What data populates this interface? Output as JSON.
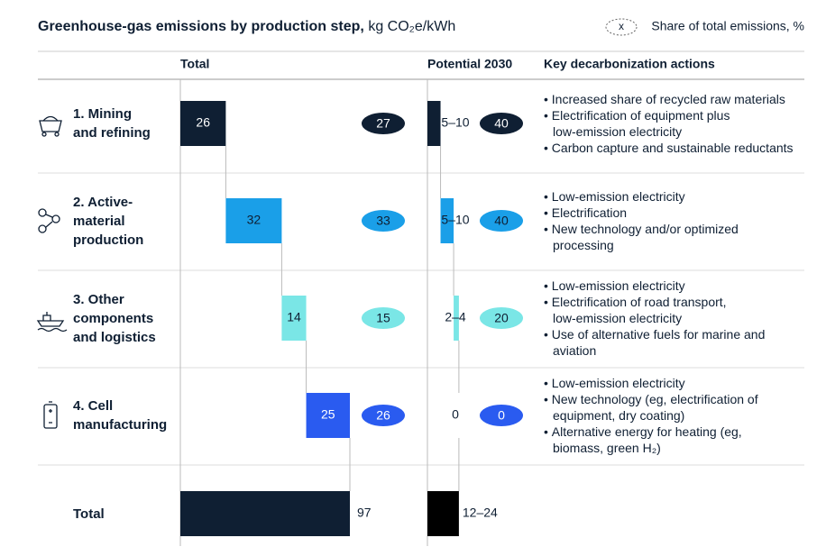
{
  "chart_data": {
    "type": "waterfall",
    "title": "Greenhouse-gas emissions by production step,",
    "unit": "kg CO₂e/kWh",
    "legend_marker": "x",
    "legend_label": "Share of total emissions, %",
    "columns": [
      "Total",
      "Potential 2030",
      "Key decarbonization actions"
    ],
    "series": [
      {
        "name": [
          "1. Mining",
          "and refining"
        ],
        "color": "#0f1f33",
        "value": 26,
        "share": 27,
        "potential": [
          5,
          10
        ],
        "potential_label": "5–10",
        "potential_share": 40,
        "actions": [
          [
            "Increased share of recycled raw materials"
          ],
          [
            "Electrification of equipment plus",
            "low-emission electricity"
          ],
          [
            "Carbon capture and sustainable reductants"
          ]
        ]
      },
      {
        "name": [
          "2. Active-",
          "material",
          "production"
        ],
        "color": "#1a9fe8",
        "value": 32,
        "share": 33,
        "potential": [
          5,
          10
        ],
        "potential_label": "5–10",
        "potential_share": 40,
        "actions": [
          [
            "Low-emission electricity"
          ],
          [
            "Electrification"
          ],
          [
            "New technology and/or optimized",
            "processing"
          ]
        ]
      },
      {
        "name": [
          "3. Other",
          "components",
          "and logistics"
        ],
        "color": "#7ae6e6",
        "value": 14,
        "share": 15,
        "potential": [
          2,
          4
        ],
        "potential_label": "2–4",
        "potential_share": 20,
        "actions": [
          [
            "Low-emission electricity"
          ],
          [
            "Electrification of road transport,",
            "low-emission electricity"
          ],
          [
            "Use of alternative fuels for marine and",
            "aviation"
          ]
        ]
      },
      {
        "name": [
          "4. Cell",
          "manufacturing"
        ],
        "color": "#2a5bf0",
        "value": 25,
        "share": 26,
        "potential": [
          0,
          0
        ],
        "potential_label": "0",
        "potential_share": 0,
        "actions": [
          [
            "Low-emission electricity"
          ],
          [
            "New technology (eg, electrification of",
            "equipment, dry coating)"
          ],
          [
            "Alternative energy for heating (eg,",
            "biomass, green H₂)"
          ]
        ]
      }
    ],
    "total": {
      "name": "Total",
      "color": "#0f1f33",
      "value": 97,
      "potential": [
        12,
        24
      ],
      "potential_label": "12–24",
      "potential_color": "#000000"
    }
  }
}
